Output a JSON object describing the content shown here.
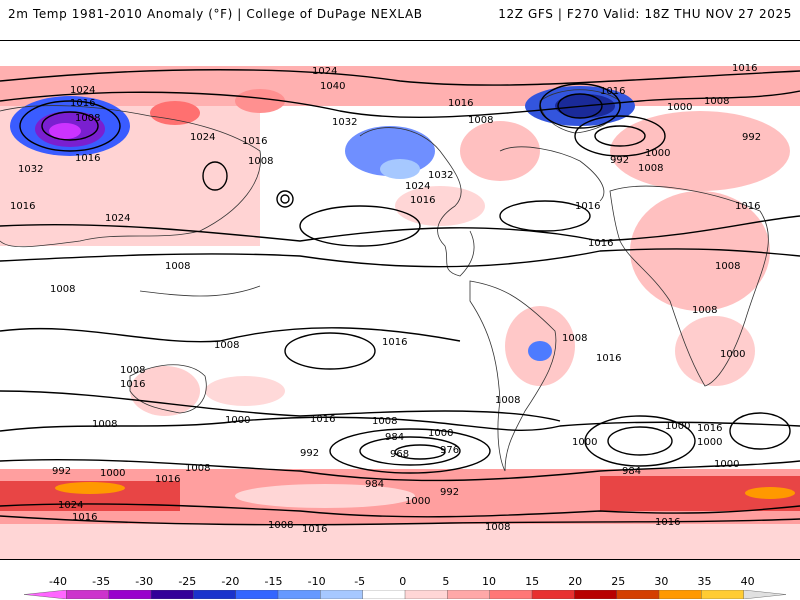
{
  "header": {
    "left_title": "2m Temp 1981-2010 Anomaly (°F) | College of DuPage NEXLAB",
    "right_title": "12Z GFS | F270 Valid: 18Z THU NOV 27 2025"
  },
  "map": {
    "contour_labels": [
      "1024",
      "1016",
      "1040",
      "1024",
      "1016",
      "1008",
      "1016",
      "1032",
      "1024",
      "1016",
      "1008",
      "1016",
      "1032",
      "1016",
      "1008",
      "1024",
      "1024",
      "1016",
      "1032",
      "1016",
      "1008",
      "1000",
      "992",
      "1000",
      "1008",
      "992",
      "1016",
      "1016",
      "1008",
      "1008",
      "1008",
      "1008",
      "1016",
      "1008",
      "1016",
      "1008",
      "1016",
      "1000",
      "1008",
      "1016",
      "1008",
      "1000",
      "1016",
      "1008",
      "992",
      "984",
      "1000",
      "968",
      "976",
      "1016",
      "1008",
      "1000",
      "1000",
      "1000",
      "984",
      "1000",
      "984",
      "992",
      "1000",
      "992",
      "1000",
      "1016",
      "1008",
      "1016",
      "1024",
      "1008",
      "1008",
      "1016",
      "1016"
    ]
  },
  "legend": {
    "tick_labels": [
      "-40",
      "-35",
      "-30",
      "-25",
      "-20",
      "-15",
      "-10",
      "-5",
      "0",
      "5",
      "10",
      "15",
      "20",
      "25",
      "30",
      "35",
      "40"
    ],
    "colors": [
      "#ff66ff",
      "#cc33cc",
      "#9900cc",
      "#330099",
      "#1a33cc",
      "#3366ff",
      "#6699ff",
      "#a6c8ff",
      "#ffffff",
      "#ffd6d6",
      "#ffa8a8",
      "#ff7777",
      "#e83030",
      "#b80000",
      "#d43f00",
      "#ff9900",
      "#ffcc33",
      "#e0e0e0"
    ]
  }
}
